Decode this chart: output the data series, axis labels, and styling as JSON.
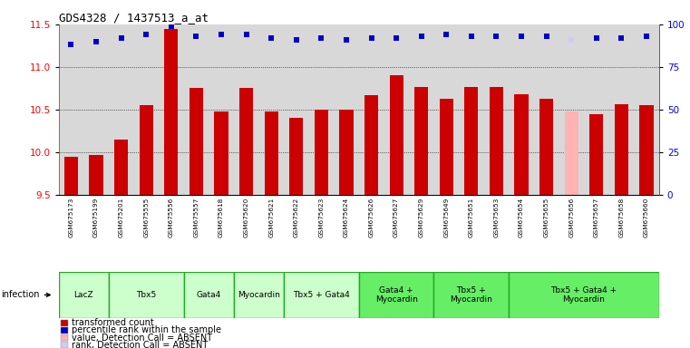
{
  "title": "GDS4328 / 1437513_a_at",
  "samples": [
    "GSM675173",
    "GSM675199",
    "GSM675201",
    "GSM675555",
    "GSM675556",
    "GSM675557",
    "GSM675618",
    "GSM675620",
    "GSM675621",
    "GSM675622",
    "GSM675623",
    "GSM675624",
    "GSM675626",
    "GSM675627",
    "GSM675629",
    "GSM675649",
    "GSM675651",
    "GSM675653",
    "GSM675654",
    "GSM675655",
    "GSM675656",
    "GSM675657",
    "GSM675658",
    "GSM675660"
  ],
  "bar_values": [
    9.95,
    9.97,
    10.15,
    10.55,
    11.45,
    10.75,
    10.48,
    10.75,
    10.48,
    10.4,
    10.5,
    10.5,
    10.67,
    10.9,
    10.77,
    10.63,
    10.77,
    10.77,
    10.68,
    10.63,
    10.48,
    10.45,
    10.56,
    10.55
  ],
  "bar_absent": [
    false,
    false,
    false,
    false,
    false,
    false,
    false,
    false,
    false,
    false,
    false,
    false,
    false,
    false,
    false,
    false,
    false,
    false,
    false,
    false,
    true,
    false,
    false,
    false
  ],
  "percentile_values": [
    88,
    90,
    92,
    94,
    99,
    93,
    94,
    94,
    92,
    91,
    92,
    91,
    92,
    92,
    93,
    94,
    93,
    93,
    93,
    93,
    91,
    92,
    92,
    93
  ],
  "percentile_absent": [
    false,
    false,
    false,
    false,
    false,
    false,
    false,
    false,
    false,
    false,
    false,
    false,
    false,
    false,
    false,
    false,
    false,
    false,
    false,
    false,
    true,
    false,
    false,
    false
  ],
  "ylim_left": [
    9.5,
    11.5
  ],
  "ylim_right": [
    0,
    100
  ],
  "yticks_left": [
    9.5,
    10.0,
    10.5,
    11.0,
    11.5
  ],
  "yticks_right": [
    0,
    25,
    50,
    75,
    100
  ],
  "groups": [
    {
      "label": "LacZ",
      "start": 0,
      "end": 2,
      "color": "#ccffcc"
    },
    {
      "label": "Tbx5",
      "start": 2,
      "end": 5,
      "color": "#ccffcc"
    },
    {
      "label": "Gata4",
      "start": 5,
      "end": 7,
      "color": "#ccffcc"
    },
    {
      "label": "Myocardin",
      "start": 7,
      "end": 9,
      "color": "#ccffcc"
    },
    {
      "label": "Tbx5 + Gata4",
      "start": 9,
      "end": 12,
      "color": "#ccffcc"
    },
    {
      "label": "Gata4 +\nMyocardin",
      "start": 12,
      "end": 15,
      "color": "#66ee66"
    },
    {
      "label": "Tbx5 +\nMyocardin",
      "start": 15,
      "end": 18,
      "color": "#66ee66"
    },
    {
      "label": "Tbx5 + Gata4 +\nMyocardin",
      "start": 18,
      "end": 24,
      "color": "#66ee66"
    }
  ],
  "bar_color": "#cc0000",
  "bar_absent_color": "#ffb3b3",
  "dot_color": "#0000cc",
  "dot_absent_color": "#ccccff",
  "plot_bg_color": "#d8d8d8",
  "sample_bg_color": "#c8c8c8",
  "group_border_color": "#22aa22",
  "infection_label": "infection",
  "legend_items": [
    {
      "label": "transformed count",
      "color": "#cc0000"
    },
    {
      "label": "percentile rank within the sample",
      "color": "#0000cc"
    },
    {
      "label": "value, Detection Call = ABSENT",
      "color": "#ffb3b3"
    },
    {
      "label": "rank, Detection Call = ABSENT",
      "color": "#ccccff"
    }
  ]
}
